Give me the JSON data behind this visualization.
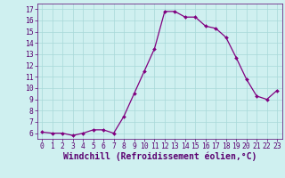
{
  "x": [
    0,
    1,
    2,
    3,
    4,
    5,
    6,
    7,
    8,
    9,
    10,
    11,
    12,
    13,
    14,
    15,
    16,
    17,
    18,
    19,
    20,
    21,
    22,
    23
  ],
  "y": [
    6.1,
    6.0,
    6.0,
    5.8,
    6.0,
    6.3,
    6.3,
    6.0,
    7.5,
    9.5,
    11.5,
    13.5,
    16.8,
    16.8,
    16.3,
    16.3,
    15.5,
    15.3,
    14.5,
    12.7,
    10.8,
    9.3,
    9.0,
    9.8
  ],
  "xlim": [
    -0.5,
    23.5
  ],
  "ylim": [
    5.5,
    17.5
  ],
  "yticks": [
    6,
    7,
    8,
    9,
    10,
    11,
    12,
    13,
    14,
    15,
    16,
    17
  ],
  "xticks": [
    0,
    1,
    2,
    3,
    4,
    5,
    6,
    7,
    8,
    9,
    10,
    11,
    12,
    13,
    14,
    15,
    16,
    17,
    18,
    19,
    20,
    21,
    22,
    23
  ],
  "xlabel": "Windchill (Refroidissement éolien,°C)",
  "line_color": "#800080",
  "marker_color": "#800080",
  "bg_color": "#cff0f0",
  "grid_color": "#a8d8d8",
  "tick_label_fontsize": 5.8,
  "xlabel_fontsize": 7.0,
  "marker_size": 2.0,
  "line_width": 0.9
}
